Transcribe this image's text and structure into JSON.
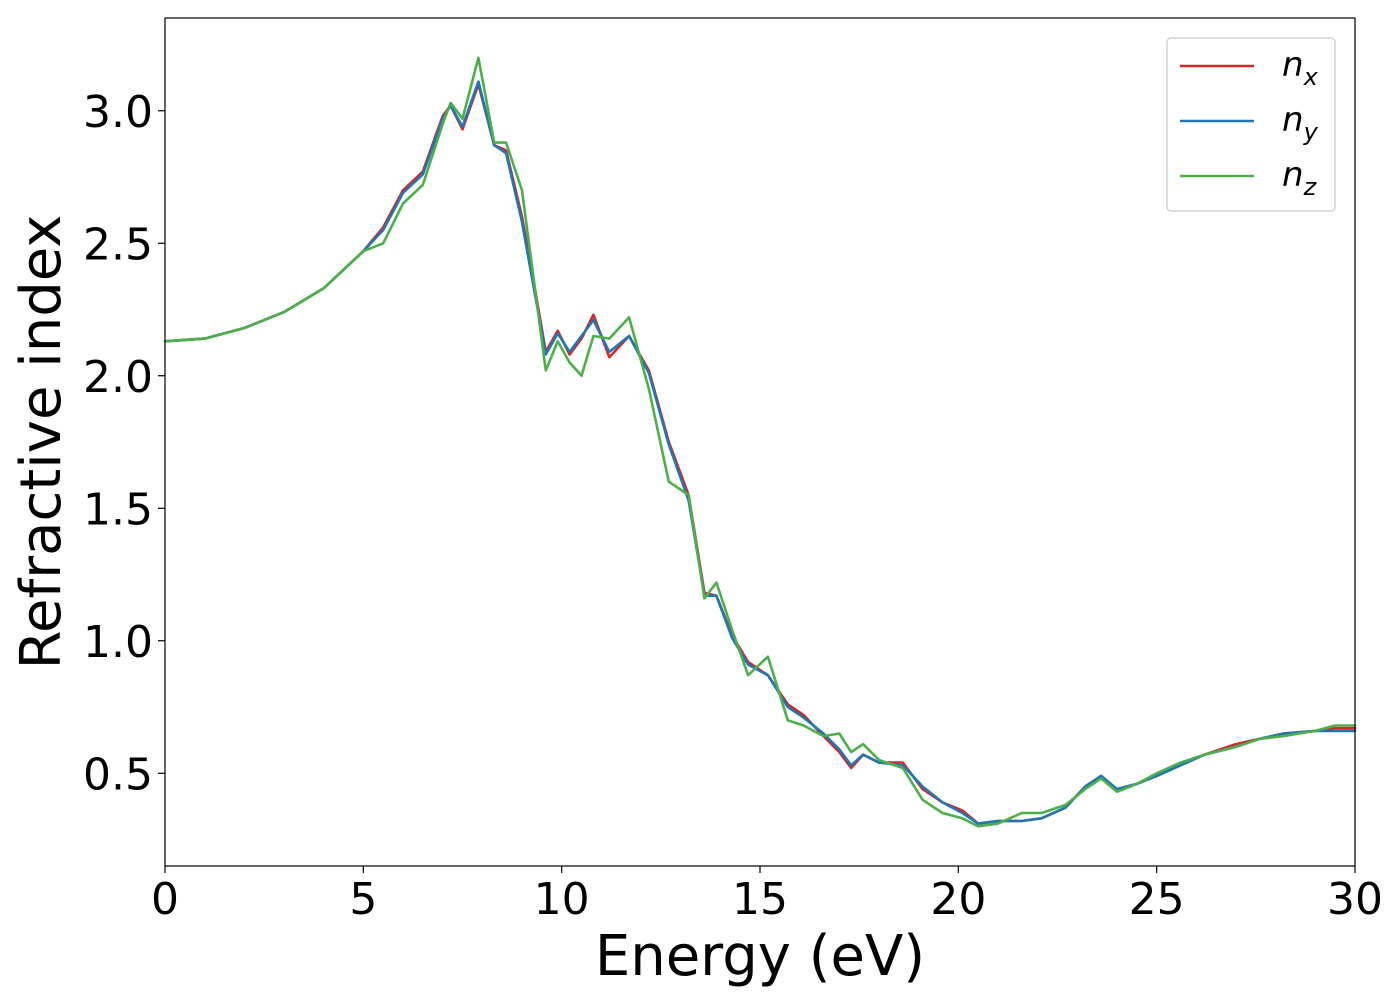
{
  "chart_data": {
    "type": "line",
    "title": "",
    "xlabel": "Energy (eV)",
    "ylabel": "Refractive index",
    "xlim": [
      0,
      30
    ],
    "ylim": [
      0.15,
      3.35
    ],
    "xticks": [
      "0",
      "5",
      "10",
      "15",
      "20",
      "25",
      "30"
    ],
    "yticks": [
      "0.5",
      "1.0",
      "1.5",
      "2.0",
      "2.5",
      "3.0"
    ],
    "grid": false,
    "legend_position": "top-right",
    "x": [
      0,
      1,
      2,
      3,
      4,
      5,
      5.5,
      6,
      6.5,
      7,
      7.2,
      7.5,
      7.9,
      8.3,
      8.6,
      9.0,
      9.3,
      9.6,
      9.9,
      10.2,
      10.5,
      10.8,
      11.2,
      11.7,
      12.2,
      12.7,
      13.2,
      13.6,
      13.9,
      14.3,
      14.7,
      15.2,
      15.7,
      16.1,
      16.6,
      17.0,
      17.3,
      17.6,
      18.0,
      18.6,
      19.1,
      19.6,
      20.1,
      20.5,
      21.0,
      21.6,
      22.1,
      22.7,
      23.2,
      23.6,
      24.0,
      24.5,
      25.0,
      25.6,
      26.2,
      27.0,
      27.6,
      28.2,
      29.0,
      29.5,
      30.0
    ],
    "series": [
      {
        "name": "n_x",
        "label_base": "n",
        "label_sub": "x",
        "color": "#d62728",
        "values": [
          2.13,
          2.14,
          2.18,
          2.24,
          2.33,
          2.47,
          2.56,
          2.7,
          2.77,
          2.98,
          3.02,
          2.93,
          3.1,
          2.87,
          2.85,
          2.6,
          2.35,
          2.09,
          2.17,
          2.08,
          2.14,
          2.23,
          2.07,
          2.15,
          2.02,
          1.75,
          1.55,
          1.18,
          1.17,
          1.02,
          0.92,
          0.87,
          0.76,
          0.72,
          0.64,
          0.58,
          0.52,
          0.57,
          0.54,
          0.54,
          0.44,
          0.39,
          0.36,
          0.31,
          0.32,
          0.32,
          0.33,
          0.37,
          0.45,
          0.49,
          0.44,
          0.46,
          0.49,
          0.53,
          0.57,
          0.61,
          0.63,
          0.65,
          0.66,
          0.67,
          0.67
        ]
      },
      {
        "name": "n_y",
        "label_base": "n",
        "label_sub": "y",
        "color": "#1f77b4",
        "values": [
          2.13,
          2.14,
          2.18,
          2.24,
          2.33,
          2.47,
          2.55,
          2.69,
          2.76,
          2.97,
          3.02,
          2.94,
          3.11,
          2.87,
          2.84,
          2.58,
          2.33,
          2.08,
          2.16,
          2.09,
          2.15,
          2.21,
          2.09,
          2.15,
          2.01,
          1.74,
          1.53,
          1.17,
          1.17,
          1.01,
          0.91,
          0.87,
          0.75,
          0.71,
          0.65,
          0.59,
          0.53,
          0.57,
          0.54,
          0.53,
          0.45,
          0.39,
          0.35,
          0.31,
          0.32,
          0.32,
          0.33,
          0.37,
          0.45,
          0.49,
          0.44,
          0.46,
          0.49,
          0.53,
          0.57,
          0.6,
          0.63,
          0.65,
          0.66,
          0.66,
          0.66
        ]
      },
      {
        "name": "n_z",
        "label_base": "n",
        "label_sub": "z",
        "color": "#4daf4a",
        "values": [
          2.13,
          2.14,
          2.18,
          2.24,
          2.33,
          2.47,
          2.5,
          2.65,
          2.72,
          2.95,
          3.03,
          2.97,
          3.2,
          2.88,
          2.88,
          2.7,
          2.36,
          2.02,
          2.13,
          2.05,
          2.0,
          2.15,
          2.14,
          2.22,
          1.95,
          1.6,
          1.55,
          1.16,
          1.22,
          1.04,
          0.87,
          0.94,
          0.7,
          0.68,
          0.64,
          0.65,
          0.58,
          0.61,
          0.55,
          0.52,
          0.4,
          0.35,
          0.33,
          0.3,
          0.31,
          0.35,
          0.35,
          0.38,
          0.44,
          0.48,
          0.43,
          0.46,
          0.5,
          0.54,
          0.57,
          0.6,
          0.63,
          0.64,
          0.66,
          0.68,
          0.68
        ]
      }
    ]
  }
}
